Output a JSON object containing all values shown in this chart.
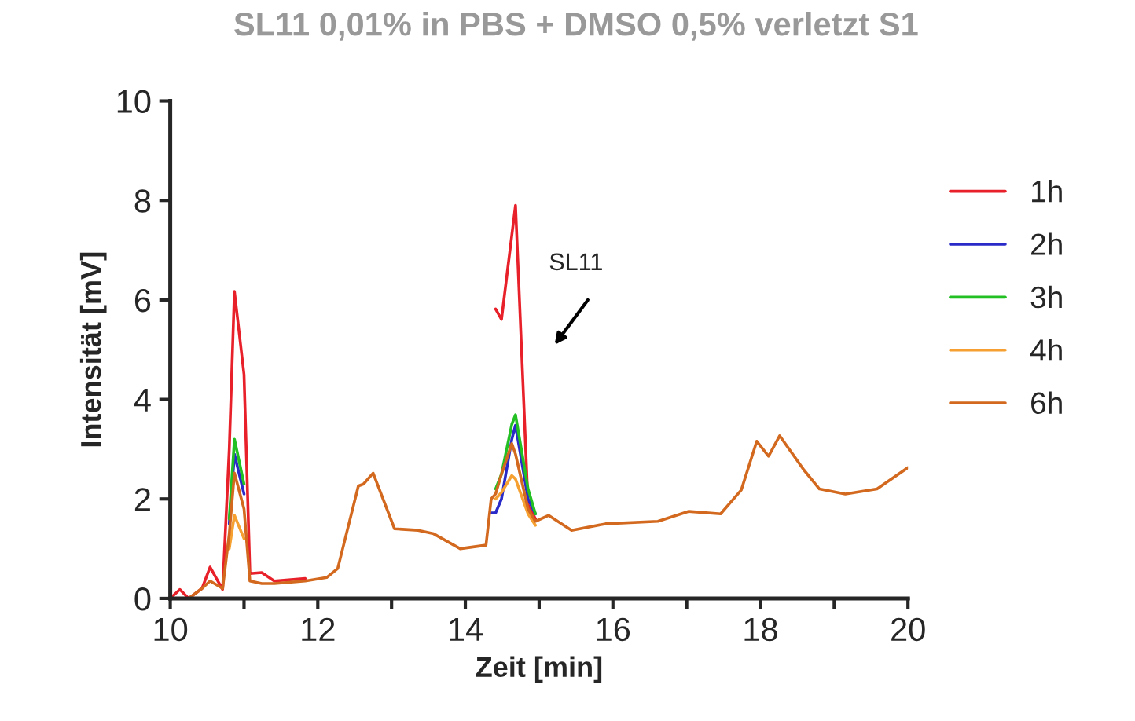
{
  "chart_data": {
    "type": "line",
    "title": "SL11 0,01% in PBS + DMSO 0,5% verletzt S1",
    "xlabel": "Zeit [min]",
    "ylabel": "Intensität [mV]",
    "x": [
      10.0,
      10.13,
      10.25,
      10.43,
      10.54,
      10.71,
      10.8,
      10.87,
      11.0,
      11.08,
      11.24,
      11.41,
      11.83,
      12.12,
      12.27,
      12.55,
      12.62,
      12.75,
      13.04,
      13.36,
      13.57,
      13.93,
      14.28,
      14.35,
      14.41,
      14.49,
      14.63,
      14.68,
      14.85,
      14.95,
      15.13,
      15.44,
      15.9,
      16.61,
      17.03,
      17.46,
      17.74,
      17.95,
      18.11,
      18.26,
      18.59,
      18.8,
      19.15,
      19.58,
      20.0
    ],
    "series": [
      {
        "name": "1h",
        "color": "#e8202a",
        "values": [
          0,
          0.18,
          0,
          0.2,
          0.63,
          0.18,
          3.0,
          6.17,
          4.5,
          0.5,
          0.52,
          0.35,
          0.4,
          null,
          null,
          null,
          null,
          null,
          null,
          null,
          null,
          null,
          null,
          null,
          5.82,
          5.61,
          7.3,
          7.9,
          1.88,
          1.6,
          null,
          null,
          null,
          null,
          null,
          null,
          null,
          null,
          null,
          null,
          null,
          null,
          null,
          null,
          null
        ]
      },
      {
        "name": "2h",
        "color": "#2a2ac8",
        "values": [
          null,
          null,
          null,
          null,
          null,
          null,
          1.5,
          2.9,
          2.1,
          null,
          null,
          null,
          null,
          null,
          null,
          null,
          null,
          null,
          null,
          null,
          null,
          null,
          null,
          1.72,
          1.72,
          2.0,
          3.2,
          3.48,
          2.0,
          1.7,
          null,
          null,
          null,
          null,
          null,
          null,
          null,
          null,
          null,
          null,
          null,
          null,
          null,
          null,
          null
        ]
      },
      {
        "name": "3h",
        "color": "#22c022",
        "values": [
          null,
          null,
          null,
          null,
          null,
          null,
          1.6,
          3.2,
          2.3,
          null,
          null,
          null,
          null,
          null,
          null,
          null,
          null,
          null,
          null,
          null,
          null,
          null,
          null,
          null,
          2.2,
          2.5,
          3.5,
          3.69,
          2.2,
          1.7,
          null,
          null,
          null,
          null,
          null,
          null,
          null,
          null,
          null,
          null,
          null,
          null,
          null,
          null,
          null
        ]
      },
      {
        "name": "4h",
        "color": "#f5a030",
        "values": [
          null,
          null,
          null,
          null,
          null,
          null,
          1.0,
          1.67,
          1.2,
          null,
          null,
          null,
          null,
          null,
          null,
          null,
          null,
          null,
          null,
          null,
          null,
          null,
          null,
          null,
          2.0,
          2.13,
          2.47,
          2.4,
          1.7,
          1.47,
          null,
          null,
          null,
          null,
          null,
          null,
          null,
          null,
          null,
          null,
          null,
          null,
          null,
          null,
          null
        ]
      },
      {
        "name": "6h",
        "color": "#d2691e",
        "values": [
          null,
          null,
          0,
          0.2,
          0.35,
          0.2,
          1.3,
          2.52,
          1.8,
          0.35,
          0.3,
          0.3,
          0.35,
          0.42,
          0.6,
          2.26,
          2.3,
          2.52,
          1.4,
          1.37,
          1.3,
          1.0,
          1.07,
          2.0,
          2.1,
          2.5,
          3.11,
          2.9,
          1.8,
          1.55,
          1.67,
          1.37,
          1.5,
          1.55,
          1.75,
          1.7,
          2.18,
          3.16,
          2.86,
          3.27,
          2.58,
          2.2,
          2.1,
          2.2,
          2.63
        ]
      }
    ],
    "xlim": [
      10,
      20
    ],
    "xticks": [
      10,
      {
        "value": 11,
        "label": null
      },
      12,
      {
        "value": 13,
        "label": null
      },
      14,
      {
        "value": 15,
        "label": null
      },
      16,
      {
        "value": 17,
        "label": null
      },
      18,
      {
        "value": 19,
        "label": null
      },
      20
    ],
    "ylim": [
      0,
      10
    ],
    "yticks": [
      0,
      2,
      4,
      6,
      8,
      10
    ],
    "annotations": [
      "SL11"
    ],
    "grid": false,
    "legend": "right",
    "marker": "none",
    "line_style": "solid"
  }
}
